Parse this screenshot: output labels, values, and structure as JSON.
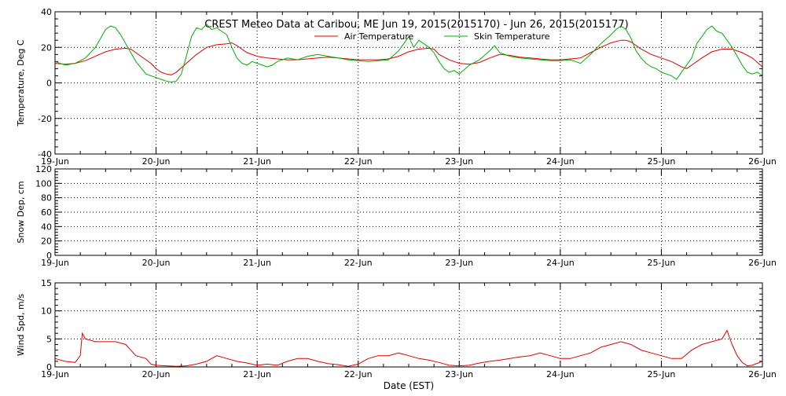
{
  "title": "CREST Meteo Data at Caribou, ME   Jun 19, 2015(2015170) - Jun 26, 2015(2015177)",
  "xlabel": "Date (EST)",
  "colors": {
    "air": "#e00000",
    "skin": "#00b000",
    "wind": "#e00000",
    "axes": "#000000"
  },
  "chart_data": [
    {
      "type": "line",
      "ylabel": "Temperature, Deg C",
      "ylim": [
        -40,
        40
      ],
      "yticks": [
        "-40",
        "-20",
        "0",
        "20",
        "40"
      ],
      "xlim": [
        0,
        7
      ],
      "xticks": [
        "19-Jun",
        "20-Jun",
        "21-Jun",
        "22-Jun",
        "23-Jun",
        "24-Jun",
        "25-Jun",
        "26-Jun"
      ],
      "grid": true,
      "legend": "top-center",
      "series": [
        {
          "name": "Air Temperature",
          "color": "#e00000",
          "points": [
            [
              0,
              11
            ],
            [
              0.1,
              10.5
            ],
            [
              0.2,
              11
            ],
            [
              0.3,
              12.5
            ],
            [
              0.4,
              15
            ],
            [
              0.5,
              17.5
            ],
            [
              0.6,
              19
            ],
            [
              0.7,
              19.5
            ],
            [
              0.75,
              19
            ],
            [
              0.85,
              15
            ],
            [
              0.95,
              11
            ],
            [
              1.0,
              8
            ],
            [
              1.05,
              6
            ],
            [
              1.1,
              5
            ],
            [
              1.15,
              4.5
            ],
            [
              1.2,
              6
            ],
            [
              1.3,
              11
            ],
            [
              1.4,
              16
            ],
            [
              1.5,
              20
            ],
            [
              1.6,
              21.5
            ],
            [
              1.7,
              22
            ],
            [
              1.75,
              22.5
            ],
            [
              1.8,
              21
            ],
            [
              1.9,
              17
            ],
            [
              2.0,
              15
            ],
            [
              2.1,
              14
            ],
            [
              2.2,
              13.5
            ],
            [
              2.3,
              13
            ],
            [
              2.4,
              13
            ],
            [
              2.5,
              13.5
            ],
            [
              2.6,
              14
            ],
            [
              2.7,
              14.5
            ],
            [
              2.8,
              14
            ],
            [
              2.9,
              13.5
            ],
            [
              3.0,
              13
            ],
            [
              3.1,
              13
            ],
            [
              3.2,
              13
            ],
            [
              3.3,
              13.5
            ],
            [
              3.4,
              15
            ],
            [
              3.5,
              17.5
            ],
            [
              3.6,
              19
            ],
            [
              3.7,
              19.5
            ],
            [
              3.75,
              19
            ],
            [
              3.8,
              16
            ],
            [
              3.9,
              13
            ],
            [
              4.0,
              11
            ],
            [
              4.1,
              10.5
            ],
            [
              4.2,
              11.5
            ],
            [
              4.3,
              14
            ],
            [
              4.4,
              16
            ],
            [
              4.5,
              15.5
            ],
            [
              4.6,
              14.5
            ],
            [
              4.7,
              14
            ],
            [
              4.8,
              13.5
            ],
            [
              4.9,
              13
            ],
            [
              5.0,
              13
            ],
            [
              5.1,
              13.5
            ],
            [
              5.2,
              14
            ],
            [
              5.3,
              17
            ],
            [
              5.4,
              20
            ],
            [
              5.5,
              22.5
            ],
            [
              5.6,
              24
            ],
            [
              5.65,
              24
            ],
            [
              5.7,
              23
            ],
            [
              5.8,
              19
            ],
            [
              5.9,
              16
            ],
            [
              6.0,
              14
            ],
            [
              6.1,
              12
            ],
            [
              6.2,
              9
            ],
            [
              6.25,
              8
            ],
            [
              6.3,
              10
            ],
            [
              6.4,
              14
            ],
            [
              6.5,
              17.5
            ],
            [
              6.6,
              19
            ],
            [
              6.7,
              19
            ],
            [
              6.8,
              17
            ],
            [
              6.9,
              14
            ],
            [
              7.0,
              9
            ]
          ]
        },
        {
          "name": "Skin Temperature",
          "color": "#00b000",
          "points": [
            [
              0,
              12
            ],
            [
              0.1,
              10
            ],
            [
              0.2,
              11
            ],
            [
              0.3,
              14
            ],
            [
              0.4,
              20
            ],
            [
              0.45,
              25
            ],
            [
              0.5,
              30
            ],
            [
              0.55,
              32
            ],
            [
              0.6,
              31
            ],
            [
              0.65,
              27
            ],
            [
              0.7,
              22
            ],
            [
              0.8,
              12
            ],
            [
              0.9,
              5
            ],
            [
              1.0,
              3
            ],
            [
              1.05,
              2
            ],
            [
              1.1,
              1
            ],
            [
              1.15,
              0.5
            ],
            [
              1.2,
              1
            ],
            [
              1.25,
              5
            ],
            [
              1.3,
              15
            ],
            [
              1.35,
              26
            ],
            [
              1.4,
              31
            ],
            [
              1.45,
              30
            ],
            [
              1.5,
              33
            ],
            [
              1.55,
              30
            ],
            [
              1.6,
              31
            ],
            [
              1.65,
              29
            ],
            [
              1.7,
              27
            ],
            [
              1.75,
              20
            ],
            [
              1.8,
              14
            ],
            [
              1.85,
              11
            ],
            [
              1.9,
              10
            ],
            [
              1.95,
              12
            ],
            [
              2.0,
              11
            ],
            [
              2.1,
              9
            ],
            [
              2.15,
              10
            ],
            [
              2.2,
              12
            ],
            [
              2.3,
              14
            ],
            [
              2.4,
              13
            ],
            [
              2.5,
              15
            ],
            [
              2.6,
              16
            ],
            [
              2.7,
              15
            ],
            [
              2.8,
              14
            ],
            [
              2.9,
              13
            ],
            [
              3.0,
              12.5
            ],
            [
              3.1,
              12
            ],
            [
              3.2,
              12.5
            ],
            [
              3.3,
              13
            ],
            [
              3.4,
              18
            ],
            [
              3.45,
              22
            ],
            [
              3.5,
              26
            ],
            [
              3.55,
              20
            ],
            [
              3.6,
              24
            ],
            [
              3.65,
              22
            ],
            [
              3.7,
              20
            ],
            [
              3.75,
              17
            ],
            [
              3.8,
              12
            ],
            [
              3.85,
              8
            ],
            [
              3.9,
              6
            ],
            [
              3.95,
              7
            ],
            [
              4.0,
              5
            ],
            [
              4.1,
              10
            ],
            [
              4.2,
              13
            ],
            [
              4.3,
              18
            ],
            [
              4.35,
              21
            ],
            [
              4.4,
              17
            ],
            [
              4.5,
              15
            ],
            [
              4.6,
              14
            ],
            [
              4.7,
              13.5
            ],
            [
              4.8,
              13
            ],
            [
              4.9,
              12.5
            ],
            [
              5.0,
              12.5
            ],
            [
              5.1,
              13
            ],
            [
              5.2,
              11
            ],
            [
              5.3,
              16
            ],
            [
              5.4,
              22
            ],
            [
              5.5,
              27
            ],
            [
              5.55,
              30
            ],
            [
              5.6,
              32
            ],
            [
              5.65,
              30
            ],
            [
              5.7,
              25
            ],
            [
              5.75,
              18
            ],
            [
              5.8,
              14
            ],
            [
              5.85,
              11
            ],
            [
              5.9,
              9
            ],
            [
              5.95,
              8
            ],
            [
              6.0,
              6
            ],
            [
              6.1,
              4
            ],
            [
              6.15,
              2
            ],
            [
              6.2,
              6
            ],
            [
              6.3,
              14
            ],
            [
              6.35,
              22
            ],
            [
              6.4,
              26
            ],
            [
              6.45,
              30
            ],
            [
              6.5,
              32
            ],
            [
              6.55,
              29
            ],
            [
              6.6,
              28
            ],
            [
              6.65,
              24
            ],
            [
              6.7,
              20
            ],
            [
              6.75,
              15
            ],
            [
              6.8,
              10
            ],
            [
              6.85,
              6
            ],
            [
              6.9,
              5
            ],
            [
              6.95,
              6
            ],
            [
              7.0,
              4
            ]
          ]
        }
      ]
    },
    {
      "type": "line",
      "ylabel": "Snow Dep, cm",
      "ylim": [
        0,
        120
      ],
      "yticks": [
        "0",
        "20",
        "40",
        "60",
        "80",
        "100",
        "120"
      ],
      "xlim": [
        0,
        7
      ],
      "xticks": [
        "19-Jun",
        "20-Jun",
        "21-Jun",
        "22-Jun",
        "23-Jun",
        "24-Jun",
        "25-Jun",
        "26-Jun"
      ],
      "grid": true,
      "series": []
    },
    {
      "type": "line",
      "ylabel": "Wind Spd, m/s",
      "ylim": [
        0,
        15
      ],
      "yticks": [
        "0",
        "5",
        "10",
        "15"
      ],
      "xlim": [
        0,
        7
      ],
      "xticks": [
        "19-Jun",
        "20-Jun",
        "21-Jun",
        "22-Jun",
        "23-Jun",
        "24-Jun",
        "25-Jun",
        "26-Jun"
      ],
      "grid": true,
      "series": [
        {
          "name": "",
          "color": "#e00000",
          "points": [
            [
              0,
              1.5
            ],
            [
              0.1,
              1
            ],
            [
              0.2,
              0.8
            ],
            [
              0.25,
              2
            ],
            [
              0.27,
              6
            ],
            [
              0.3,
              5
            ],
            [
              0.4,
              4.5
            ],
            [
              0.5,
              4.5
            ],
            [
              0.6,
              4.5
            ],
            [
              0.7,
              4
            ],
            [
              0.75,
              3
            ],
            [
              0.8,
              2
            ],
            [
              0.9,
              1.5
            ],
            [
              0.95,
              0.5
            ],
            [
              1.0,
              0.3
            ],
            [
              1.1,
              0.2
            ],
            [
              1.2,
              0.1
            ],
            [
              1.3,
              0.2
            ],
            [
              1.4,
              0.5
            ],
            [
              1.5,
              1
            ],
            [
              1.55,
              1.5
            ],
            [
              1.6,
              2
            ],
            [
              1.7,
              1.5
            ],
            [
              1.8,
              1
            ],
            [
              1.9,
              0.7
            ],
            [
              2.0,
              0.3
            ],
            [
              2.1,
              0.5
            ],
            [
              2.2,
              0.3
            ],
            [
              2.3,
              1
            ],
            [
              2.4,
              1.5
            ],
            [
              2.5,
              1.5
            ],
            [
              2.6,
              1
            ],
            [
              2.7,
              0.6
            ],
            [
              2.8,
              0.4
            ],
            [
              2.9,
              0.1
            ],
            [
              3.0,
              0.5
            ],
            [
              3.1,
              1.5
            ],
            [
              3.2,
              2
            ],
            [
              3.3,
              2
            ],
            [
              3.4,
              2.5
            ],
            [
              3.5,
              2
            ],
            [
              3.6,
              1.5
            ],
            [
              3.7,
              1.2
            ],
            [
              3.8,
              0.8
            ],
            [
              3.9,
              0.3
            ],
            [
              4.0,
              0.2
            ],
            [
              4.1,
              0.3
            ],
            [
              4.2,
              0.7
            ],
            [
              4.3,
              1
            ],
            [
              4.4,
              1.2
            ],
            [
              4.5,
              1.5
            ],
            [
              4.6,
              1.8
            ],
            [
              4.7,
              2
            ],
            [
              4.8,
              2.5
            ],
            [
              4.9,
              2
            ],
            [
              5.0,
              1.5
            ],
            [
              5.1,
              1.5
            ],
            [
              5.2,
              2
            ],
            [
              5.3,
              2.5
            ],
            [
              5.4,
              3.5
            ],
            [
              5.5,
              4
            ],
            [
              5.6,
              4.5
            ],
            [
              5.7,
              4
            ],
            [
              5.8,
              3
            ],
            [
              5.9,
              2.5
            ],
            [
              6.0,
              2
            ],
            [
              6.1,
              1.5
            ],
            [
              6.2,
              1.5
            ],
            [
              6.3,
              3
            ],
            [
              6.4,
              4
            ],
            [
              6.5,
              4.5
            ],
            [
              6.6,
              5
            ],
            [
              6.65,
              6.5
            ],
            [
              6.7,
              4
            ],
            [
              6.75,
              2
            ],
            [
              6.8,
              0.8
            ],
            [
              6.85,
              0.2
            ],
            [
              6.9,
              0.3
            ],
            [
              7.0,
              1
            ]
          ]
        }
      ]
    }
  ]
}
